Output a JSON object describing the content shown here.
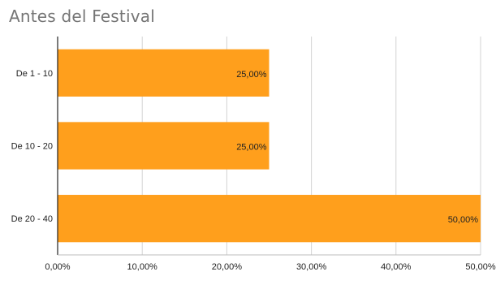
{
  "chart_data": {
    "type": "bar",
    "orientation": "horizontal",
    "title": "Antes del Festival",
    "categories": [
      "De 1 - 10",
      "De 10 - 20",
      "De 20 - 40"
    ],
    "values": [
      25,
      25,
      50
    ],
    "value_labels": [
      "25,00%",
      "25,00%",
      "50,00%"
    ],
    "xlim": [
      0,
      50
    ],
    "x_ticks": [
      0,
      10,
      20,
      30,
      40,
      50
    ],
    "x_tick_labels": [
      "0,00%",
      "10,00%",
      "20,00%",
      "30,00%",
      "40,00%",
      "50,00%"
    ],
    "xlabel": "",
    "ylabel": "",
    "grid": "vertical",
    "legend": "none",
    "colors": {
      "bar": "#FF9F1C",
      "grid": "#D3D3D3",
      "axis": "#222222",
      "title": "#757575"
    }
  }
}
